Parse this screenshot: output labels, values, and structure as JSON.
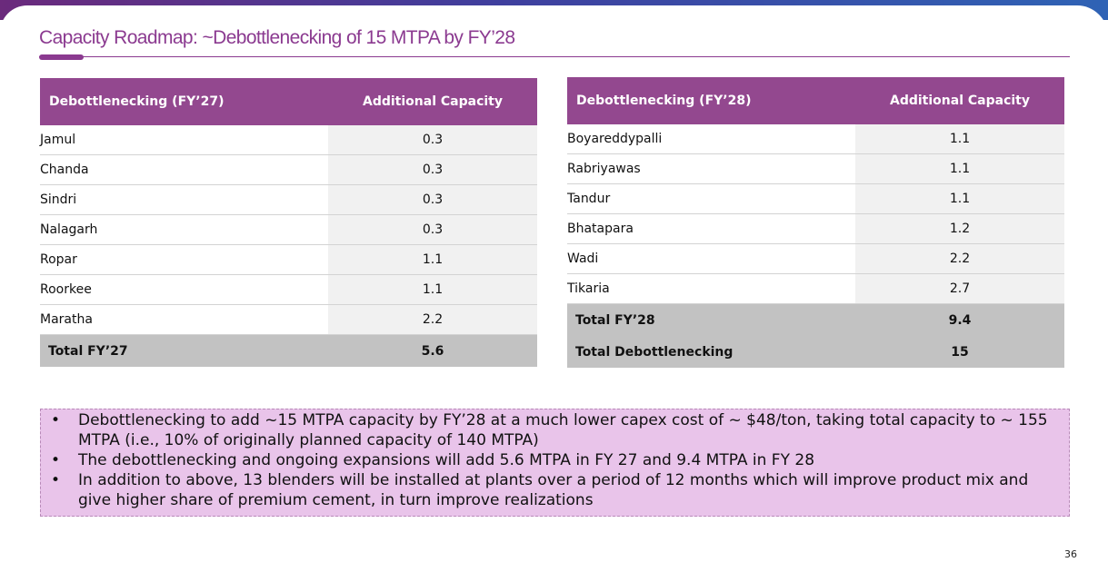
{
  "title": "Capacity Roadmap:  ~Debottlenecking of 15 MTPA by FY’28",
  "table_fy27": {
    "header": [
      "Debottlenecking (FY’27)",
      "Additional Capacity"
    ],
    "rows": [
      {
        "name": "Jamul",
        "value": "0.3"
      },
      {
        "name": "Chanda",
        "value": "0.3"
      },
      {
        "name": "Sindri",
        "value": "0.3"
      },
      {
        "name": "Nalagarh",
        "value": "0.3"
      },
      {
        "name": "Ropar",
        "value": "1.1"
      },
      {
        "name": "Roorkee",
        "value": "1.1"
      },
      {
        "name": "Maratha",
        "value": "2.2"
      }
    ],
    "total": {
      "name": "Total FY’27",
      "value": "5.6"
    }
  },
  "table_fy28": {
    "header": [
      "Debottlenecking (FY’28)",
      "Additional Capacity"
    ],
    "rows": [
      {
        "name": "Boyareddypalli",
        "value": "1.1"
      },
      {
        "name": "Rabriyawas",
        "value": "1.1"
      },
      {
        "name": "Tandur",
        "value": "1.1"
      },
      {
        "name": "Bhatapara",
        "value": "1.2"
      },
      {
        "name": "Wadi",
        "value": "2.2"
      },
      {
        "name": "Tikaria",
        "value": "2.7"
      }
    ],
    "totals": [
      {
        "name": "Total FY’28",
        "value": "9.4"
      },
      {
        "name": "Total Debottlenecking",
        "value": "15"
      }
    ]
  },
  "notes": {
    "bullet_glyph": "•",
    "items": [
      "Debottlenecking to add ~15 MTPA capacity by FY’28 at a much lower capex cost of ~ $48/ton, taking total capacity to ~ 155 MTPA (i.e., 10% of originally planned capacity of 140 MTPA)",
      "The debottlenecking and ongoing expansions will add 5.6 MTPA in FY 27 and 9.4 MTPA in FY 28",
      "In addition to above, 13 blenders will be installed at plants over a period of 12 months which will improve product mix and give higher share of premium cement, in turn improve realizations"
    ]
  },
  "page_number": "36",
  "colors": {
    "accent": "#8b3a90",
    "header_bg": "#93488f",
    "note_bg": "#e9c4ea",
    "total_bg": "#c2c2c2"
  }
}
